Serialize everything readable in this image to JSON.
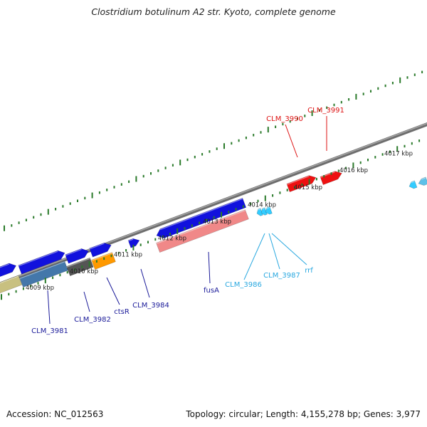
{
  "title": "Clostridium botulinum A2 str. Kyoto, complete genome",
  "footer": {
    "accession": "Accession: NC_012563",
    "stats": "Topology: circular; Length: 4,155,278 bp; Genes: 3,977"
  },
  "colors": {
    "forward_gene": "#1111dd",
    "reverse_gene_light": "#33ccff",
    "highlight_gene": "#ee1111",
    "rrna_pink": "#f08888",
    "backbone": "#808080",
    "tick": "#2a7a2a",
    "label_dark_blue": "#1a1a99",
    "label_light_blue": "#29a8e0",
    "label_red": "#dd1111",
    "orange_feature": "#ff9900",
    "dark_gray_feature": "#555555",
    "steel_blue_feature": "#4477aa",
    "khaki_feature": "#c8c080"
  },
  "scale_labels": [
    "4009 kbp",
    "4010 kbp",
    "4011 kbp",
    "4012 kbp",
    "4013 kbp",
    "4014 kbp",
    "4015 kbp",
    "4016 kbp",
    "4017 kbp"
  ],
  "gene_labels": [
    {
      "id": "clm3981",
      "text": "CLM_3981",
      "color": "dark"
    },
    {
      "id": "clm3982",
      "text": "CLM_3982",
      "color": "dark"
    },
    {
      "id": "ctsr",
      "text": "ctsR",
      "color": "dark"
    },
    {
      "id": "clm3984",
      "text": "CLM_3984",
      "color": "dark"
    },
    {
      "id": "fusa",
      "text": "fusA",
      "color": "dark"
    },
    {
      "id": "clm3986",
      "text": "CLM_3986",
      "color": "light"
    },
    {
      "id": "clm3987",
      "text": "CLM_3987",
      "color": "light"
    },
    {
      "id": "rrf",
      "text": "rrf",
      "color": "light"
    },
    {
      "id": "clm3990",
      "text": "CLM_3990",
      "color": "red"
    },
    {
      "id": "clm3991",
      "text": "CLM_3991",
      "color": "red"
    }
  ]
}
